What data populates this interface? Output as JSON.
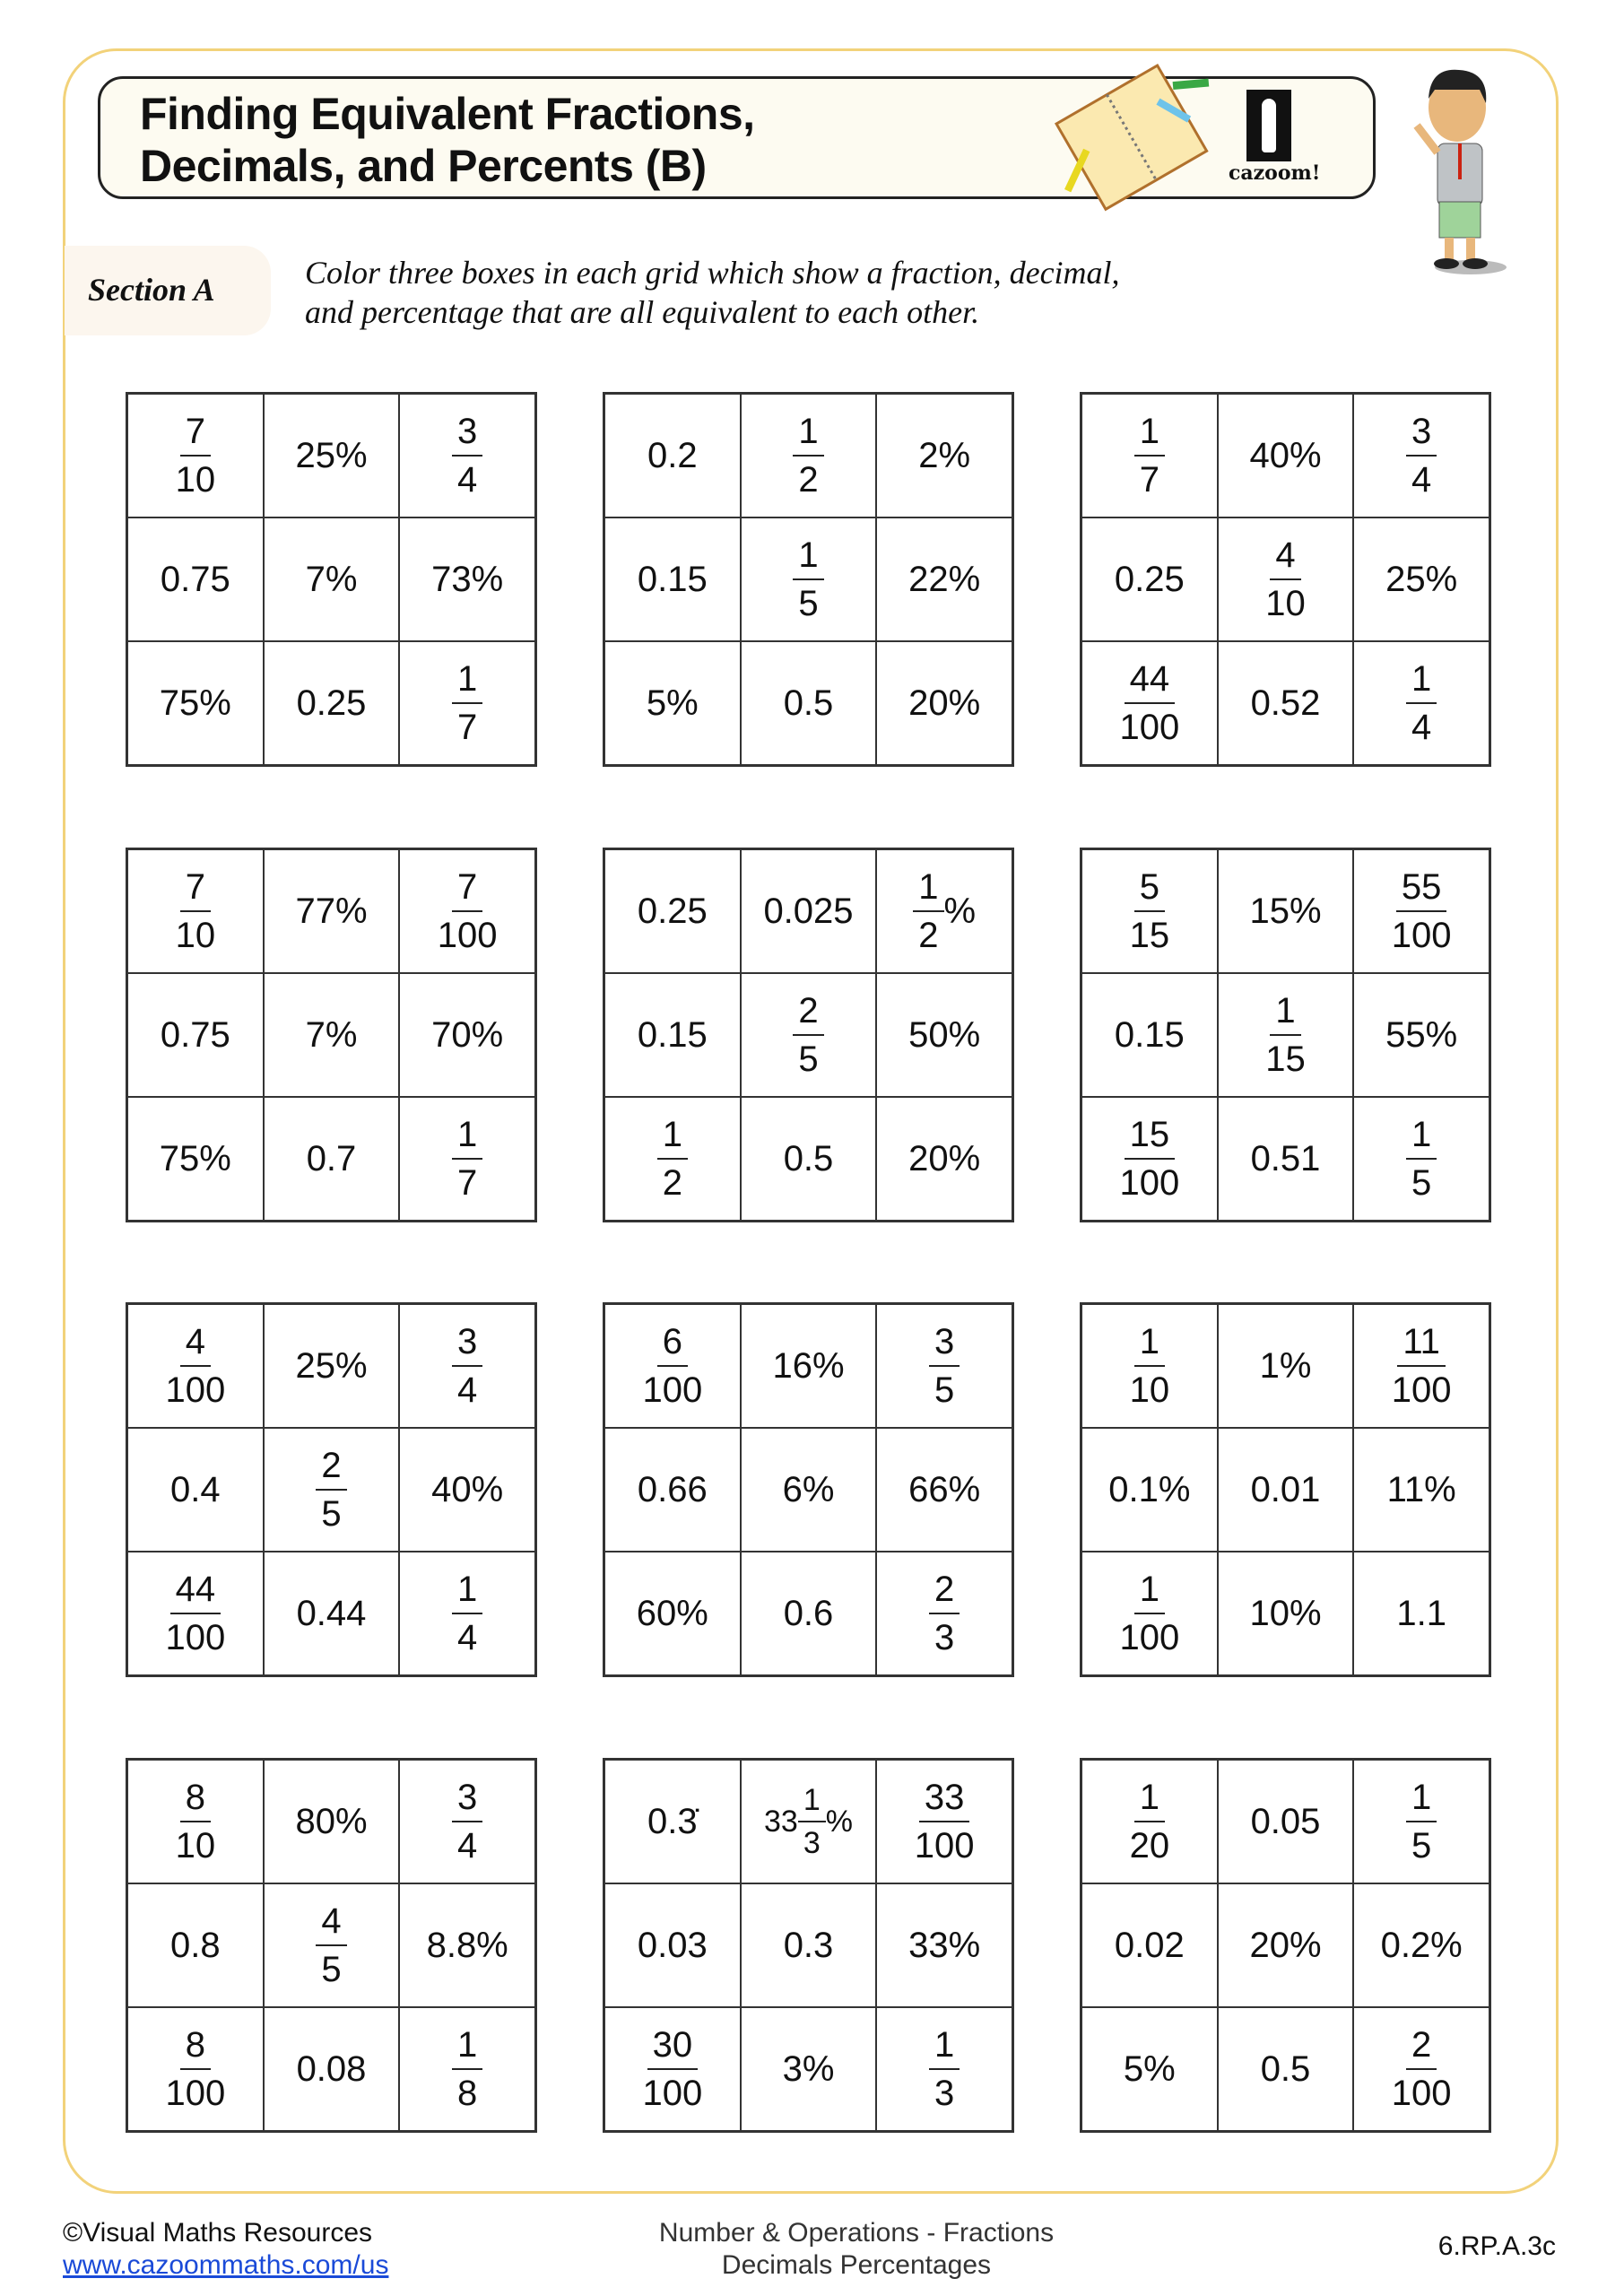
{
  "header": {
    "title_line1": "Finding Equivalent Fractions,",
    "title_line2": "Decimals, and Percents (B)",
    "logo_text": "cazoom!"
  },
  "section": {
    "label": "Section A",
    "instruction_line1": "Color three boxes in each grid which show a fraction, decimal,",
    "instruction_line2": "and percentage that are all equivalent to each other."
  },
  "grids": [
    [
      "7/10",
      "25%",
      "3/4",
      "0.75",
      "7%",
      "73%",
      "75%",
      "0.25",
      "1/7"
    ],
    [
      "0.2",
      "1/2",
      "2%",
      "0.15",
      "1/5",
      "22%",
      "5%",
      "0.5",
      "20%"
    ],
    [
      "1/7",
      "40%",
      "3/4",
      "0.25",
      "4/10",
      "25%",
      "44/100",
      "0.52",
      "1/4"
    ],
    [
      "7/10",
      "77%",
      "7/100",
      "0.75",
      "7%",
      "70%",
      "75%",
      "0.7",
      "1/7"
    ],
    [
      "0.25",
      "0.025",
      "1/2%",
      "0.15",
      "2/5",
      "50%",
      "1/2",
      "0.5",
      "20%"
    ],
    [
      "5/15",
      "15%",
      "55/100",
      "0.15",
      "1/15",
      "55%",
      "15/100",
      "0.51",
      "1/5"
    ],
    [
      "4/100",
      "25%",
      "3/4",
      "0.4",
      "2/5",
      "40%",
      "44/100",
      "0.44",
      "1/4"
    ],
    [
      "6/100",
      "16%",
      "3/5",
      "0.66",
      "6%",
      "66%",
      "60%",
      "0.6",
      "2/3"
    ],
    [
      "1/10",
      "1%",
      "11/100",
      "0.1%",
      "0.01",
      "11%",
      "1/100",
      "10%",
      "1.1"
    ],
    [
      "8/10",
      "80%",
      "3/4",
      "0.8",
      "4/5",
      "8.8%",
      "8/100",
      "0.08",
      "1/8"
    ],
    [
      "0.3̇",
      "33 1/3%",
      "33/100",
      "0.03",
      "0.3",
      "33%",
      "30/100",
      "3%",
      "1/3"
    ],
    [
      "1/20",
      "0.05",
      "1/5",
      "0.02",
      "20%",
      "0.2%",
      "5%",
      "0.5",
      "2/100"
    ]
  ],
  "footer": {
    "copyright": "©Visual Maths Resources",
    "website": "www.cazoommaths.com/us",
    "topic_line1": "Number & Operations - Fractions",
    "topic_line2": "Decimals Percentages",
    "standard": "6.RP.A.3c"
  },
  "colors": {
    "frame": "#f2d27a",
    "link": "#1a4ad8",
    "title_bg": "#fdfbf1"
  }
}
